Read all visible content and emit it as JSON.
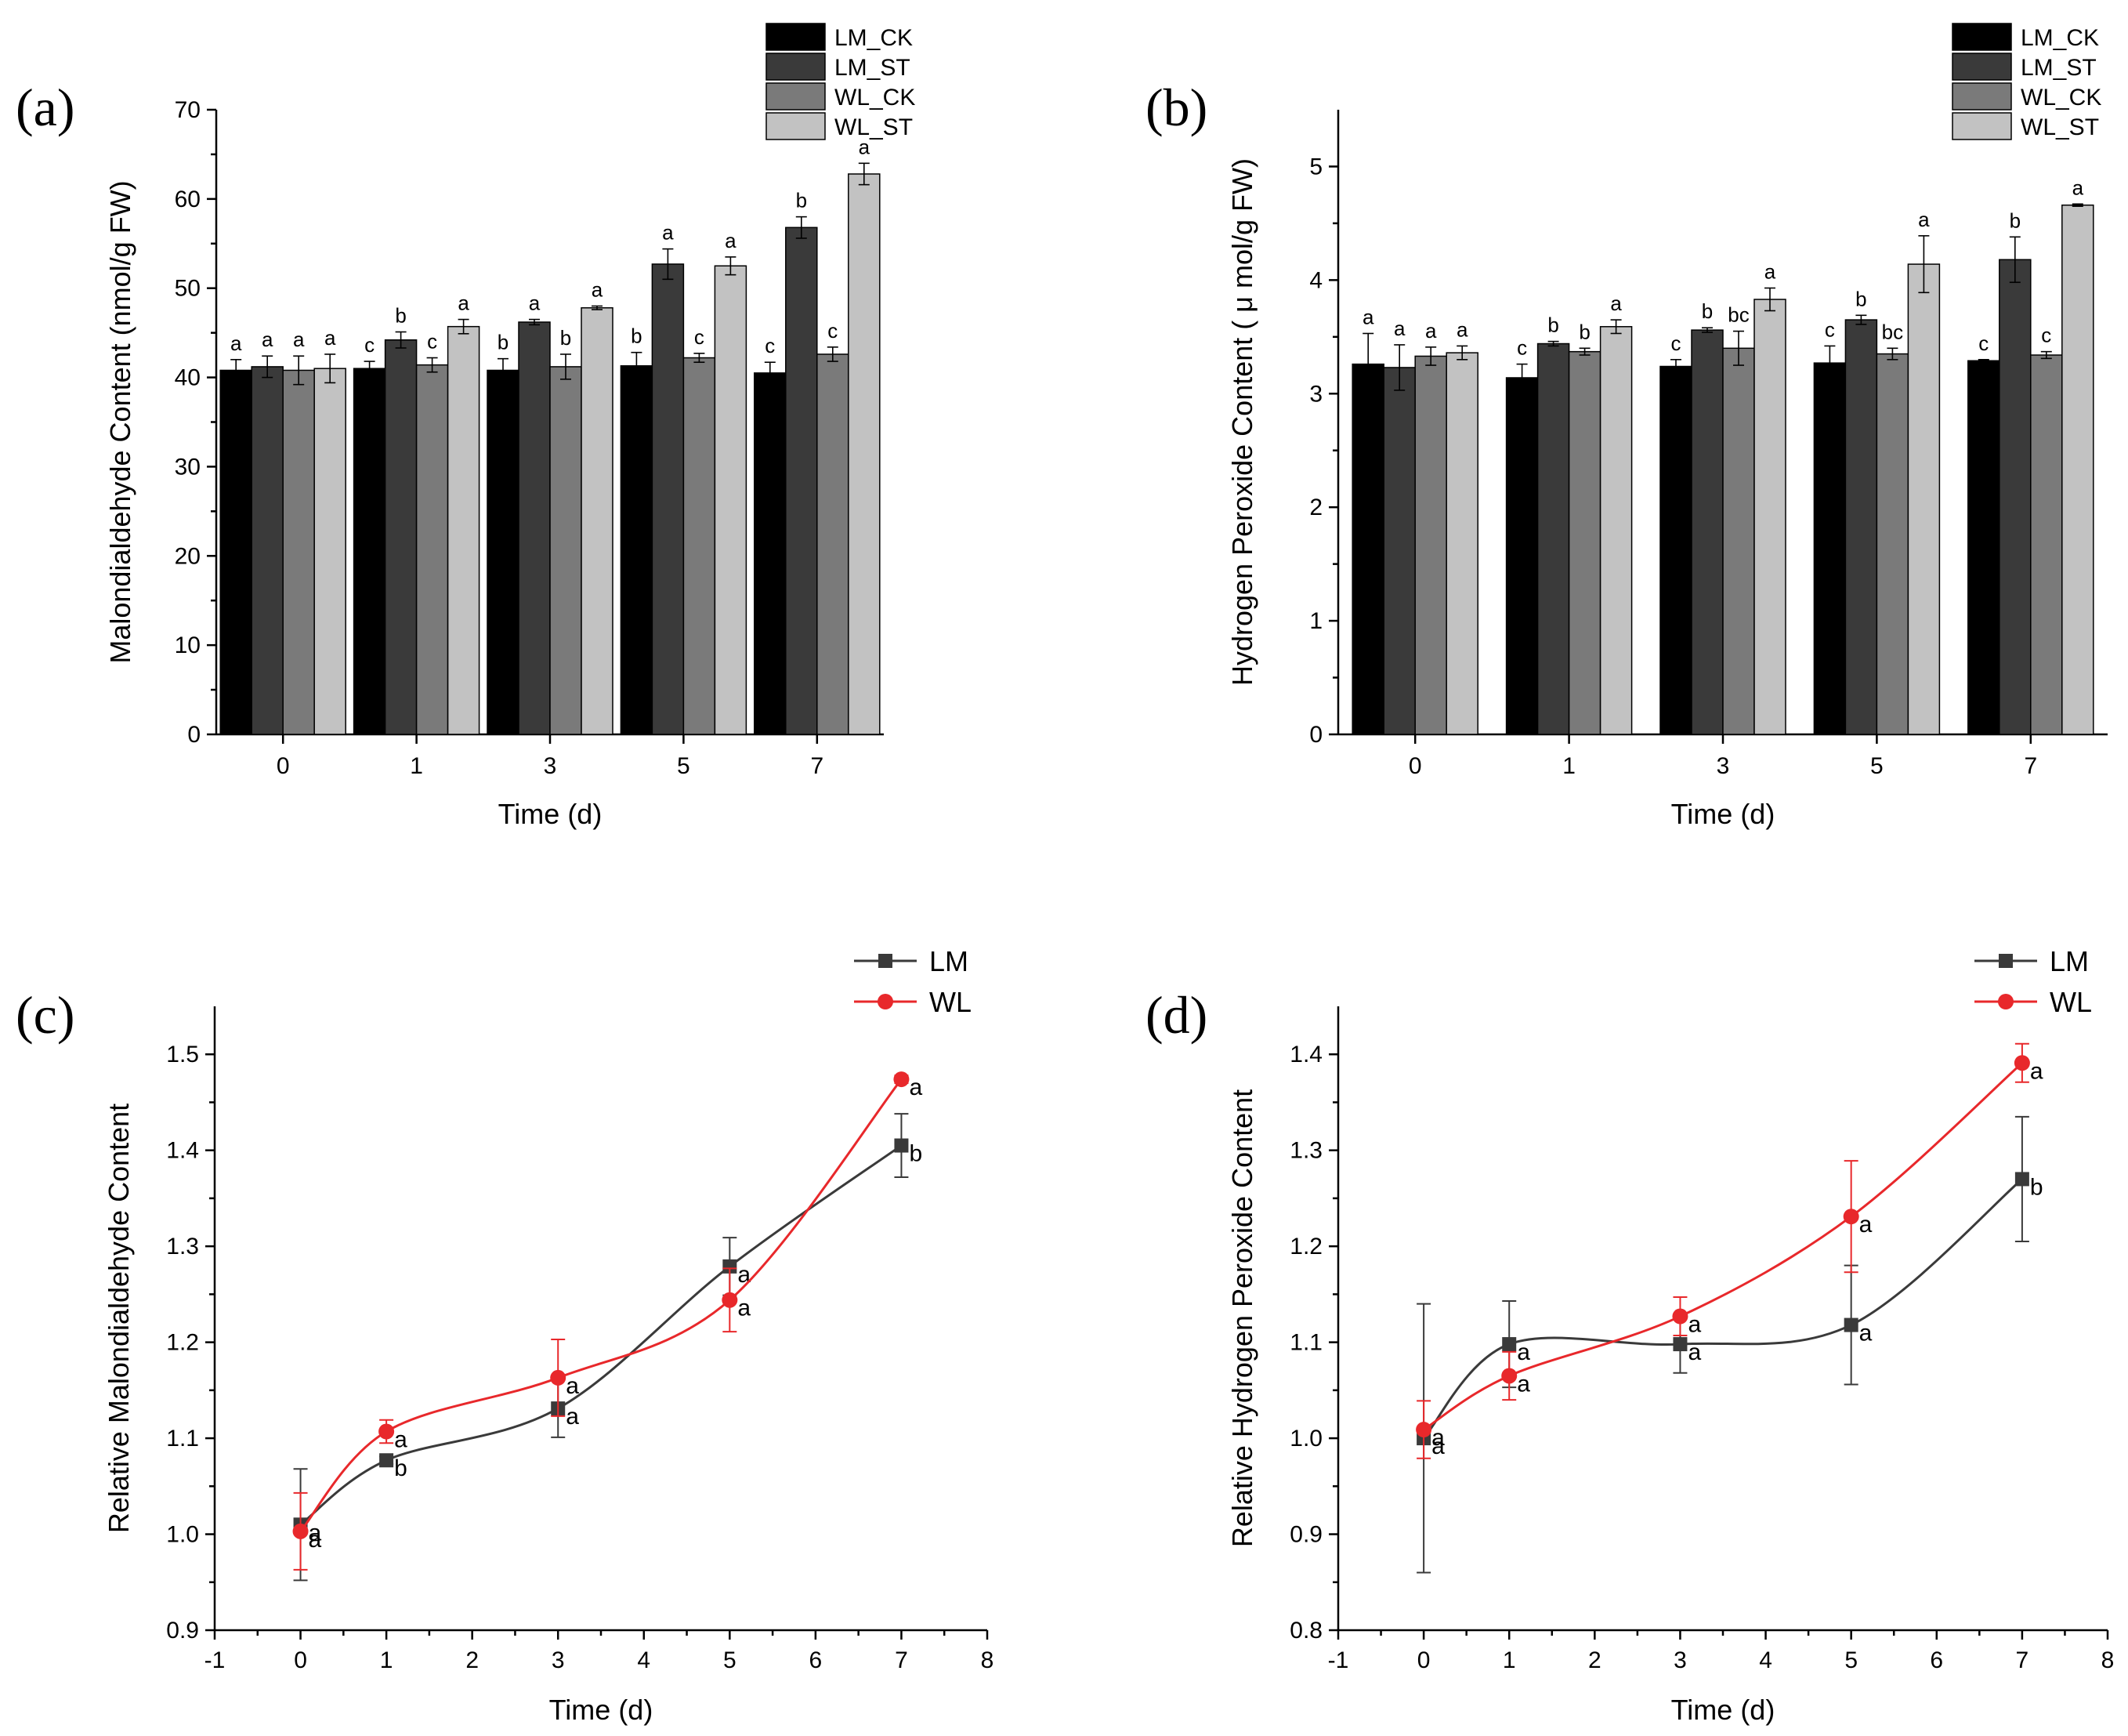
{
  "colors": {
    "LM_CK": "#000000",
    "LM_ST": "#3a3a3a",
    "WL_CK": "#7a7a7a",
    "WL_ST": "#c2c2c2",
    "LM": "#3a3a3a",
    "WL": "#e8282b",
    "axis": "#000000"
  },
  "chart_data": [
    {
      "panel": "(a)",
      "type": "bar",
      "xlabel": "Time (d)",
      "ylabel": "Malondialdehyde Content (nmol/g FW)",
      "ylim": [
        0,
        70
      ],
      "yticks": [
        0,
        10,
        20,
        30,
        40,
        50,
        60,
        70
      ],
      "categories": [
        "0",
        "1",
        "3",
        "5",
        "7"
      ],
      "legend_position": "top-right",
      "series": [
        {
          "name": "LM_CK",
          "color_key": "LM_CK",
          "values": [
            40.8,
            41.0,
            40.8,
            41.3,
            40.5
          ],
          "errors": [
            1.2,
            0.8,
            1.3,
            1.5,
            1.2
          ],
          "letters": [
            "a",
            "c",
            "b",
            "b",
            "c"
          ]
        },
        {
          "name": "LM_ST",
          "color_key": "LM_ST",
          "values": [
            41.2,
            44.2,
            46.2,
            52.7,
            56.8
          ],
          "errors": [
            1.2,
            0.9,
            0.3,
            1.7,
            1.2
          ],
          "letters": [
            "a",
            "b",
            "a",
            "a",
            "b"
          ]
        },
        {
          "name": "WL_CK",
          "color_key": "WL_CK",
          "values": [
            40.8,
            41.4,
            41.2,
            42.2,
            42.6
          ],
          "errors": [
            1.6,
            0.8,
            1.4,
            0.5,
            0.8
          ],
          "letters": [
            "a",
            "c",
            "b",
            "c",
            "c"
          ]
        },
        {
          "name": "WL_ST",
          "color_key": "WL_ST",
          "values": [
            41.0,
            45.7,
            47.8,
            52.5,
            62.8
          ],
          "errors": [
            1.6,
            0.8,
            0.2,
            1.0,
            1.2
          ],
          "letters": [
            "a",
            "a",
            "a",
            "a",
            "a"
          ]
        }
      ]
    },
    {
      "panel": "(b)",
      "type": "bar",
      "xlabel": "Time (d)",
      "ylabel": "Hydrogen Peroxide  Content ( μ mol/g FW)",
      "ylim": [
        0,
        5.5
      ],
      "yticks": [
        0,
        1,
        2,
        3,
        4,
        5
      ],
      "categories": [
        "0",
        "1",
        "3",
        "5",
        "7"
      ],
      "legend_position": "top-right",
      "series": [
        {
          "name": "LM_CK",
          "color_key": "LM_CK",
          "values": [
            3.26,
            3.14,
            3.24,
            3.27,
            3.29
          ],
          "errors": [
            0.27,
            0.12,
            0.06,
            0.15,
            0.01
          ],
          "letters": [
            "a",
            "c",
            "c",
            "c",
            "c"
          ]
        },
        {
          "name": "LM_ST",
          "color_key": "LM_ST",
          "values": [
            3.23,
            3.44,
            3.56,
            3.65,
            4.18
          ],
          "errors": [
            0.2,
            0.02,
            0.02,
            0.04,
            0.2
          ],
          "letters": [
            "a",
            "b",
            "b",
            "b",
            "b"
          ]
        },
        {
          "name": "WL_CK",
          "color_key": "WL_CK",
          "values": [
            3.33,
            3.37,
            3.4,
            3.35,
            3.34
          ],
          "errors": [
            0.08,
            0.03,
            0.15,
            0.05,
            0.03
          ],
          "letters": [
            "a",
            "b",
            "bc",
            "bc",
            "c"
          ]
        },
        {
          "name": "WL_ST",
          "color_key": "WL_ST",
          "values": [
            3.36,
            3.59,
            3.83,
            4.14,
            4.66
          ],
          "errors": [
            0.06,
            0.06,
            0.1,
            0.25,
            0.01
          ],
          "letters": [
            "a",
            "a",
            "a",
            "a",
            "a"
          ]
        }
      ]
    },
    {
      "panel": "(c)",
      "type": "line",
      "xlabel": "Time (d)",
      "ylabel": "Relative Malondialdehyde Content",
      "xlim": [
        -1,
        8
      ],
      "xticks": [
        -1,
        0,
        1,
        2,
        3,
        4,
        5,
        6,
        7,
        8
      ],
      "ylim": [
        0.9,
        1.55
      ],
      "yticks": [
        0.9,
        1.0,
        1.1,
        1.2,
        1.3,
        1.4,
        1.5
      ],
      "legend_position": "top-right",
      "series": [
        {
          "name": "LM",
          "color_key": "LM",
          "marker": "square",
          "x": [
            0,
            1,
            3,
            5,
            7
          ],
          "values": [
            1.01,
            1.077,
            1.131,
            1.279,
            1.405
          ],
          "errors": [
            0.058,
            0.004,
            0.03,
            0.03,
            0.033
          ],
          "letters": [
            "a",
            "b",
            "a",
            "a",
            "b"
          ]
        },
        {
          "name": "WL",
          "color_key": "WL",
          "marker": "circle",
          "x": [
            0,
            1,
            3,
            5,
            7
          ],
          "values": [
            1.003,
            1.107,
            1.163,
            1.244,
            1.474
          ],
          "errors": [
            0.04,
            0.012,
            0.04,
            0.033,
            0.004
          ],
          "letters": [
            "a",
            "a",
            "a",
            "a",
            "a"
          ]
        }
      ]
    },
    {
      "panel": "(d)",
      "type": "line",
      "xlabel": "Time (d)",
      "ylabel": "Relative Hydrogen Peroxide Content",
      "xlim": [
        -1,
        8
      ],
      "xticks": [
        -1,
        0,
        1,
        2,
        3,
        4,
        5,
        6,
        7,
        8
      ],
      "ylim": [
        0.8,
        1.45
      ],
      "yticks": [
        0.8,
        0.9,
        1.0,
        1.1,
        1.2,
        1.3,
        1.4
      ],
      "legend_position": "top-right",
      "series": [
        {
          "name": "LM",
          "color_key": "LM",
          "marker": "square",
          "x": [
            0,
            1,
            3,
            5,
            7
          ],
          "values": [
            1.0,
            1.098,
            1.098,
            1.118,
            1.27
          ],
          "errors": [
            0.14,
            0.045,
            0.03,
            0.062,
            0.065
          ],
          "letters": [
            "a",
            "a",
            "a",
            "a",
            "b"
          ]
        },
        {
          "name": "WL",
          "color_key": "WL",
          "marker": "circle",
          "x": [
            0,
            1,
            3,
            5,
            7
          ],
          "values": [
            1.009,
            1.065,
            1.127,
            1.231,
            1.391
          ],
          "errors": [
            0.03,
            0.025,
            0.02,
            0.058,
            0.02
          ],
          "letters": [
            "a",
            "a",
            "a",
            "a",
            "a"
          ]
        }
      ]
    }
  ]
}
